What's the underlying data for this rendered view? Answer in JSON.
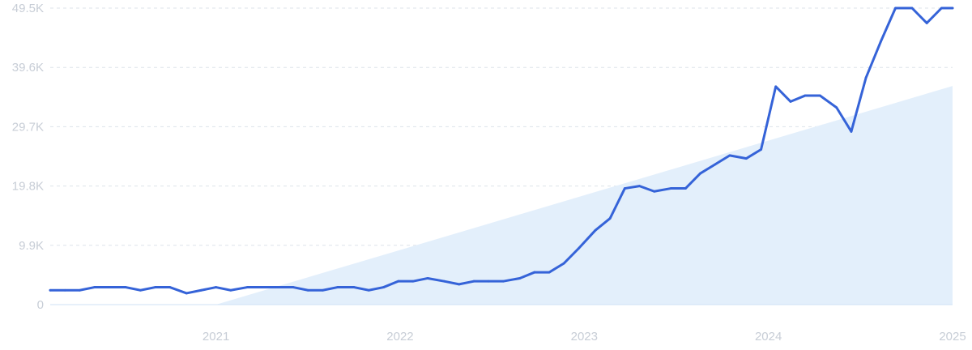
{
  "chart_data": {
    "type": "line",
    "title": "",
    "xlabel": "",
    "ylabel": "",
    "x_ticks": [
      "2021",
      "2022",
      "2023",
      "2024",
      "2025"
    ],
    "y_ticks": [
      "0",
      "9.9K",
      "19.8K",
      "29.7K",
      "39.6K",
      "49.5K"
    ],
    "ylim": [
      0,
      49500
    ],
    "xlim": [
      2020.1,
      2025.0
    ],
    "grid": true,
    "line_color": "#3563d8",
    "trend_fill_color": "#e3effb",
    "trend": {
      "x": [
        2021.0,
        2025.0
      ],
      "y": [
        0,
        36500
      ]
    },
    "series": [
      {
        "x": [
          2020.1,
          2020.18,
          2020.26,
          2020.34,
          2020.42,
          2020.51,
          2020.59,
          2020.67,
          2020.75,
          2020.84,
          2020.92,
          2021.0,
          2021.08,
          2021.17,
          2021.25,
          2021.33,
          2021.42,
          2021.5,
          2021.58,
          2021.66,
          2021.75,
          2021.83,
          2021.91,
          2021.99,
          2022.07,
          2022.15,
          2022.24,
          2022.32,
          2022.4,
          2022.48,
          2022.56,
          2022.65,
          2022.73,
          2022.81,
          2022.89,
          2022.97,
          2023.06,
          2023.14,
          2023.22,
          2023.3,
          2023.38,
          2023.47,
          2023.55,
          2023.63,
          2023.71,
          2023.79,
          2023.88,
          2023.96,
          2024.04,
          2024.12,
          2024.2,
          2024.28,
          2024.37,
          2024.45,
          2024.53,
          2024.61,
          2024.69,
          2024.78,
          2024.86,
          2024.94,
          2025.0
        ],
        "values": [
          2400,
          2400,
          2400,
          2900,
          2900,
          2900,
          2400,
          2900,
          2900,
          1900,
          2400,
          2900,
          2400,
          2900,
          2900,
          2900,
          2900,
          2400,
          2400,
          2900,
          2900,
          2400,
          2900,
          3900,
          3900,
          4400,
          3900,
          3400,
          3900,
          3900,
          3900,
          4400,
          5400,
          5400,
          6900,
          9400,
          12400,
          14400,
          19400,
          19800,
          18900,
          19400,
          19400,
          21900,
          23400,
          24900,
          24400,
          25900,
          36400,
          33900,
          34900,
          34900,
          32900,
          28900,
          37900,
          43900,
          49500,
          49500,
          47000,
          49500,
          49500
        ]
      }
    ]
  }
}
